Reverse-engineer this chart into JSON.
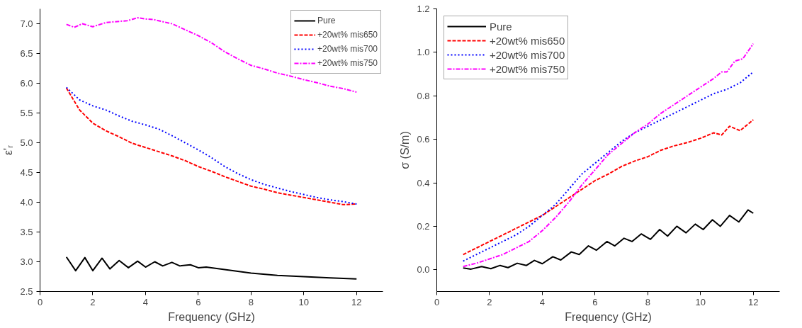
{
  "chart_data": [
    {
      "type": "line",
      "xlabel": "Frequency (GHz)",
      "ylabel": "ε'ᵣ",
      "xlim": [
        0,
        13
      ],
      "xticks": [
        0,
        2,
        4,
        6,
        8,
        10,
        12
      ],
      "ylim": [
        2.5,
        7.25
      ],
      "yticks": [
        {
          "value": 2.5,
          "label": "2.5"
        },
        {
          "value": 3,
          "label": "3.0"
        },
        {
          "value": 3.5,
          "label": "3.5"
        },
        {
          "value": 4,
          "label": "4.0"
        },
        {
          "value": 4.5,
          "label": "4.5"
        },
        {
          "value": 5,
          "label": "5.0"
        },
        {
          "value": 5.5,
          "label": "5.5"
        },
        {
          "value": 6,
          "label": "6.0"
        },
        {
          "value": 6.5,
          "label": "6.5"
        },
        {
          "value": 7,
          "label": "7.0"
        }
      ],
      "grid": false,
      "legend": "top right",
      "series": [
        {
          "name": "Pure",
          "color": "#000000",
          "line_style": "solid",
          "x": [
            1,
            1.35,
            1.7,
            2,
            2.35,
            2.65,
            3,
            3.35,
            3.7,
            4,
            4.35,
            4.65,
            5,
            5.3,
            5.7,
            6,
            6.3,
            7,
            8,
            9,
            10,
            11,
            12
          ],
          "values": [
            3.08,
            2.85,
            3.07,
            2.85,
            3.06,
            2.88,
            3.02,
            2.9,
            3.01,
            2.91,
            3.0,
            2.93,
            2.99,
            2.93,
            2.95,
            2.9,
            2.91,
            2.87,
            2.81,
            2.77,
            2.75,
            2.73,
            2.71
          ]
        },
        {
          "name": "+20wt% mis650",
          "color": "#ff0000",
          "line_style": "dashed",
          "x": [
            1,
            1.5,
            2,
            2.5,
            3,
            3.5,
            4,
            4.5,
            5,
            5.5,
            6,
            6.5,
            7,
            7.5,
            8,
            8.5,
            9,
            9.5,
            10,
            10.5,
            11,
            11.5,
            12
          ],
          "values": [
            5.92,
            5.55,
            5.33,
            5.2,
            5.1,
            4.99,
            4.92,
            4.85,
            4.78,
            4.7,
            4.6,
            4.52,
            4.43,
            4.35,
            4.27,
            4.22,
            4.16,
            4.12,
            4.08,
            4.04,
            4.0,
            3.96,
            3.97
          ]
        },
        {
          "name": "+20wt% mis700",
          "color": "#0000ff",
          "line_style": "dotted",
          "x": [
            1,
            1.5,
            2,
            2.5,
            3,
            3.5,
            4,
            4.5,
            5,
            5.5,
            6,
            6.5,
            7,
            7.5,
            8,
            8.5,
            9,
            9.5,
            10,
            10.5,
            11,
            11.5,
            12
          ],
          "values": [
            5.93,
            5.72,
            5.62,
            5.55,
            5.45,
            5.36,
            5.3,
            5.23,
            5.12,
            5.0,
            4.88,
            4.75,
            4.6,
            4.48,
            4.38,
            4.3,
            4.24,
            4.18,
            4.13,
            4.08,
            4.04,
            4.01,
            3.97
          ]
        },
        {
          "name": "+20wt% mis750",
          "color": "#ff00ff",
          "line_style": "dashdot",
          "x": [
            1,
            1.3,
            1.6,
            2,
            2.5,
            3,
            3.3,
            3.7,
            4,
            4.3,
            5,
            5.5,
            6,
            6.5,
            7,
            7.5,
            8,
            8.5,
            9,
            9.5,
            10,
            10.5,
            11,
            11.5,
            12
          ],
          "values": [
            6.99,
            6.94,
            7.0,
            6.95,
            7.02,
            7.04,
            7.05,
            7.1,
            7.08,
            7.07,
            7.0,
            6.9,
            6.8,
            6.68,
            6.53,
            6.41,
            6.3,
            6.24,
            6.17,
            6.12,
            6.06,
            6.01,
            5.95,
            5.91,
            5.85
          ]
        }
      ]
    },
    {
      "type": "line",
      "xlabel": "Frequency (GHz)",
      "ylabel": "σ (S/m)",
      "xlim": [
        0,
        13
      ],
      "xticks": [
        0,
        2,
        4,
        6,
        8,
        10,
        12
      ],
      "ylim": [
        -0.1,
        1.2
      ],
      "yticks": [
        {
          "value": 0,
          "label": "0.0"
        },
        0.2,
        0.4,
        0.6,
        0.8,
        {
          "value": 1,
          "label": "1.0"
        },
        1.2
      ],
      "grid": false,
      "legend": "top left",
      "series": [
        {
          "name": "Pure",
          "color": "#000000",
          "line_style": "solid",
          "x": [
            1,
            1.3,
            1.7,
            2.05,
            2.4,
            2.7,
            3.05,
            3.4,
            3.7,
            4.0,
            4.4,
            4.7,
            5.1,
            5.4,
            5.75,
            6.05,
            6.45,
            6.75,
            7.1,
            7.4,
            7.75,
            8.1,
            8.45,
            8.75,
            9.1,
            9.45,
            9.8,
            10.1,
            10.45,
            10.75,
            11.1,
            11.45,
            11.8,
            12
          ],
          "values": [
            0.008,
            0.003,
            0.015,
            0.005,
            0.02,
            0.01,
            0.03,
            0.02,
            0.043,
            0.028,
            0.06,
            0.045,
            0.082,
            0.07,
            0.11,
            0.09,
            0.13,
            0.11,
            0.145,
            0.13,
            0.165,
            0.14,
            0.185,
            0.155,
            0.2,
            0.17,
            0.21,
            0.185,
            0.23,
            0.2,
            0.25,
            0.22,
            0.275,
            0.26
          ]
        },
        {
          "name": "+20wt% mis650",
          "color": "#ff0000",
          "line_style": "dashed",
          "x": [
            1,
            2,
            3,
            4,
            4.5,
            5,
            5.5,
            6,
            6.5,
            7,
            7.5,
            8,
            8.5,
            9,
            9.5,
            10,
            10.5,
            10.8,
            11.1,
            11.5,
            12
          ],
          "values": [
            0.07,
            0.13,
            0.19,
            0.25,
            0.29,
            0.33,
            0.37,
            0.41,
            0.44,
            0.475,
            0.5,
            0.52,
            0.55,
            0.57,
            0.585,
            0.605,
            0.63,
            0.62,
            0.66,
            0.64,
            0.69
          ]
        },
        {
          "name": "+20wt% mis700",
          "color": "#0000ff",
          "line_style": "dotted",
          "x": [
            1,
            2,
            3,
            3.5,
            4,
            4.5,
            5,
            5.5,
            6,
            6.5,
            7,
            7.5,
            8,
            8.5,
            9,
            9.5,
            10,
            10.5,
            11,
            11.5,
            12
          ],
          "values": [
            0.04,
            0.1,
            0.16,
            0.2,
            0.25,
            0.3,
            0.37,
            0.44,
            0.49,
            0.54,
            0.59,
            0.63,
            0.66,
            0.69,
            0.72,
            0.75,
            0.78,
            0.81,
            0.83,
            0.86,
            0.91
          ]
        },
        {
          "name": "+20wt% mis750",
          "color": "#ff00ff",
          "line_style": "dashdot",
          "x": [
            1,
            1.5,
            2,
            2.5,
            3,
            3.5,
            4,
            4.5,
            5,
            5.5,
            6,
            6.5,
            7,
            7.5,
            8,
            8.5,
            9,
            9.5,
            10,
            10.5,
            10.8,
            11,
            11.3,
            11.6,
            12
          ],
          "values": [
            0.015,
            0.03,
            0.05,
            0.07,
            0.1,
            0.13,
            0.18,
            0.24,
            0.31,
            0.39,
            0.46,
            0.53,
            0.58,
            0.63,
            0.67,
            0.72,
            0.76,
            0.8,
            0.84,
            0.88,
            0.91,
            0.91,
            0.96,
            0.97,
            1.04
          ]
        }
      ]
    }
  ]
}
